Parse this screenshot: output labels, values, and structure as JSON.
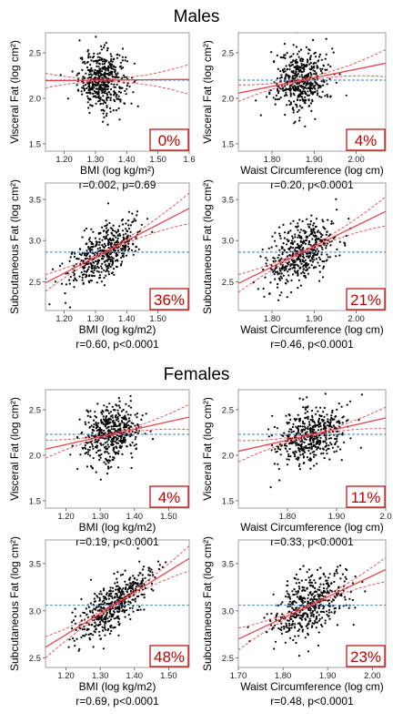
{
  "sections": [
    {
      "title": "Males"
    },
    {
      "title": "Females"
    }
  ],
  "styles": {
    "point_color": "#000000",
    "fit_color": "#e8434a",
    "ci_color": "#e8434a",
    "mean_color": "#5a9bd5",
    "badge_color": "#c00000"
  },
  "chart_data": [
    {
      "type": "scatter",
      "id": "m_vf_bmi",
      "xlabel": "BMI (log kg/m²)",
      "xsup": "",
      "ylabel": "Visceral Fat (log cm²)",
      "xlim": [
        1.14,
        1.6
      ],
      "ylim": [
        1.42,
        2.72
      ],
      "xticks": [
        1.2,
        1.3,
        1.4,
        1.5,
        1.6
      ],
      "xticklabels": [
        "1.20",
        "1.30",
        "1.40",
        "1.50",
        "1.6"
      ],
      "yticks": [
        1.5,
        2.0,
        2.5
      ],
      "yticklabels": [
        "1.5",
        "2.0",
        "2.5"
      ],
      "cloud": {
        "cx": 1.322,
        "cy": 2.2,
        "sx": 0.038,
        "sy": 0.16,
        "r": 0.002,
        "n": 480
      },
      "fit": {
        "slope": 0.03,
        "intercept": 2.16
      },
      "mean_y": 2.2,
      "r2_label": "0%",
      "stats": "r=0.002, p=0.69"
    },
    {
      "type": "scatter",
      "id": "m_vf_wc",
      "xlabel": "Waist Circumference (log cm)",
      "xsup": "",
      "ylabel": "Visceral Fat (log cm²)",
      "xlim": [
        1.72,
        2.07
      ],
      "ylim": [
        1.42,
        2.72
      ],
      "xticks": [
        1.8,
        1.9,
        2.0
      ],
      "xticklabels": [
        "1.80",
        "1.90",
        "2.00"
      ],
      "yticks": [
        1.5,
        2.0,
        2.5
      ],
      "yticklabels": [
        "1.5",
        "2.0",
        "2.5"
      ],
      "cloud": {
        "cx": 1.87,
        "cy": 2.2,
        "sx": 0.035,
        "sy": 0.16,
        "r": 0.2,
        "n": 480
      },
      "fit": {
        "slope": 0.94,
        "intercept": 0.44
      },
      "mean_y": 2.2,
      "r2_label": "4%",
      "stats": "r=0.20, p<0.0001"
    },
    {
      "type": "scatter",
      "id": "m_sf_bmi",
      "xlabel": "BMI (log kg/m2)",
      "xsup": "",
      "ylabel": "Subcutaneous Fat (log cm²)",
      "xlim": [
        1.14,
        1.6
      ],
      "ylim": [
        2.15,
        3.7
      ],
      "xticks": [
        1.2,
        1.3,
        1.4,
        1.5
      ],
      "xticklabels": [
        "1.20",
        "1.30",
        "1.40",
        "1.50"
      ],
      "yticks": [
        2.5,
        3.0,
        3.5
      ],
      "yticklabels": [
        "2.5",
        "3.0",
        "3.5"
      ],
      "cloud": {
        "cx": 1.33,
        "cy": 2.86,
        "sx": 0.055,
        "sy": 0.2,
        "r": 0.6,
        "n": 480
      },
      "fit": {
        "slope": 1.97,
        "intercept": 0.24
      },
      "mean_y": 2.86,
      "r2_label": "36%",
      "stats": "r=0.60, p<0.0001"
    },
    {
      "type": "scatter",
      "id": "m_sf_wc",
      "xlabel": "Waist Circumference (log cm)",
      "xsup": "",
      "ylabel": "Subcutaneous Fat (log cm²)",
      "xlim": [
        1.72,
        2.07
      ],
      "ylim": [
        2.15,
        3.7
      ],
      "xticks": [
        1.8,
        1.9,
        2.0
      ],
      "xticklabels": [
        "1.80",
        "1.90",
        "2.00"
      ],
      "yticks": [
        2.5,
        3.0,
        3.5
      ],
      "yticklabels": [
        "2.5",
        "3.0",
        "3.5"
      ],
      "cloud": {
        "cx": 1.87,
        "cy": 2.86,
        "sx": 0.04,
        "sy": 0.2,
        "r": 0.46,
        "n": 480
      },
      "fit": {
        "slope": 2.5,
        "intercept": -1.82
      },
      "mean_y": 2.86,
      "r2_label": "21%",
      "stats": "r=0.46, p<0.0001"
    },
    {
      "type": "scatter",
      "id": "f_vf_bmi",
      "xlabel": "BMI (log kg/m2)",
      "xsup": "",
      "ylabel": "Visceral Fat (log cm²)",
      "xlim": [
        1.14,
        1.56
      ],
      "ylim": [
        1.42,
        2.72
      ],
      "xticks": [
        1.2,
        1.3,
        1.4,
        1.5
      ],
      "xticklabels": [
        "1.20",
        "1.30",
        "1.40",
        "1.50"
      ],
      "yticks": [
        1.5,
        2.0,
        2.5
      ],
      "yticklabels": [
        "1.5",
        "2.0",
        "2.5"
      ],
      "cloud": {
        "cx": 1.33,
        "cy": 2.23,
        "sx": 0.04,
        "sy": 0.16,
        "r": 0.19,
        "n": 480
      },
      "fit": {
        "slope": 0.84,
        "intercept": 1.11
      },
      "mean_y": 2.23,
      "r2_label": "4%",
      "stats": "r=0.19, p<0.0001"
    },
    {
      "type": "scatter",
      "id": "f_vf_wc",
      "xlabel": "Waist Circumference (log cm)",
      "xsup": "",
      "ylabel": "Visceral Fat (log cm²)",
      "xlim": [
        1.7,
        2.0
      ],
      "ylim": [
        1.42,
        2.72
      ],
      "xticks": [
        1.8,
        1.9,
        2.0
      ],
      "xticklabels": [
        "1.80",
        "1.90",
        "2.0"
      ],
      "yticks": [
        1.5,
        2.0,
        2.5
      ],
      "yticklabels": [
        "1.5",
        "2.0",
        "2.5"
      ],
      "cloud": {
        "cx": 1.85,
        "cy": 2.23,
        "sx": 0.035,
        "sy": 0.16,
        "r": 0.33,
        "n": 480
      },
      "fit": {
        "slope": 1.22,
        "intercept": -0.03
      },
      "mean_y": 2.23,
      "r2_label": "11%",
      "stats": "r=0.33, p<0.0001"
    },
    {
      "type": "scatter",
      "id": "f_sf_bmi",
      "xlabel": "BMI (log kg/m2)",
      "xsup": "",
      "ylabel": "Subcutaneous Fat (log cm²)",
      "xlim": [
        1.14,
        1.56
      ],
      "ylim": [
        2.4,
        3.75
      ],
      "xticks": [
        1.2,
        1.3,
        1.4,
        1.5
      ],
      "xticklabels": [
        "1.20",
        "1.30",
        "1.40",
        "1.50"
      ],
      "yticks": [
        2.5,
        3.0,
        3.5
      ],
      "yticklabels": [
        "2.5",
        "3.0",
        "3.5"
      ],
      "cloud": {
        "cx": 1.34,
        "cy": 3.06,
        "sx": 0.05,
        "sy": 0.18,
        "r": 0.69,
        "n": 480
      },
      "fit": {
        "slope": 2.24,
        "intercept": 0.06
      },
      "mean_y": 3.06,
      "r2_label": "48%",
      "stats": "r=0.69, p<0.0001"
    },
    {
      "type": "scatter",
      "id": "f_sf_wc",
      "xlabel": "Waist Circumference (log cm)",
      "xsup": "",
      "ylabel": "Subcutaneous Fat (log cm²)",
      "xlim": [
        1.7,
        2.03
      ],
      "ylim": [
        2.4,
        3.75
      ],
      "xticks": [
        1.7,
        1.8,
        1.9,
        2.0
      ],
      "xticklabels": [
        "1.70",
        "1.80",
        "1.90",
        "2.00"
      ],
      "yticks": [
        2.5,
        3.0,
        3.5
      ],
      "yticklabels": [
        "2.5",
        "3.0",
        "3.5"
      ],
      "cloud": {
        "cx": 1.86,
        "cy": 3.06,
        "sx": 0.045,
        "sy": 0.18,
        "r": 0.48,
        "n": 480
      },
      "fit": {
        "slope": 2.23,
        "intercept": -1.09
      },
      "mean_y": 3.06,
      "r2_label": "23%",
      "stats": "r=0.48, p<0.0001"
    }
  ]
}
